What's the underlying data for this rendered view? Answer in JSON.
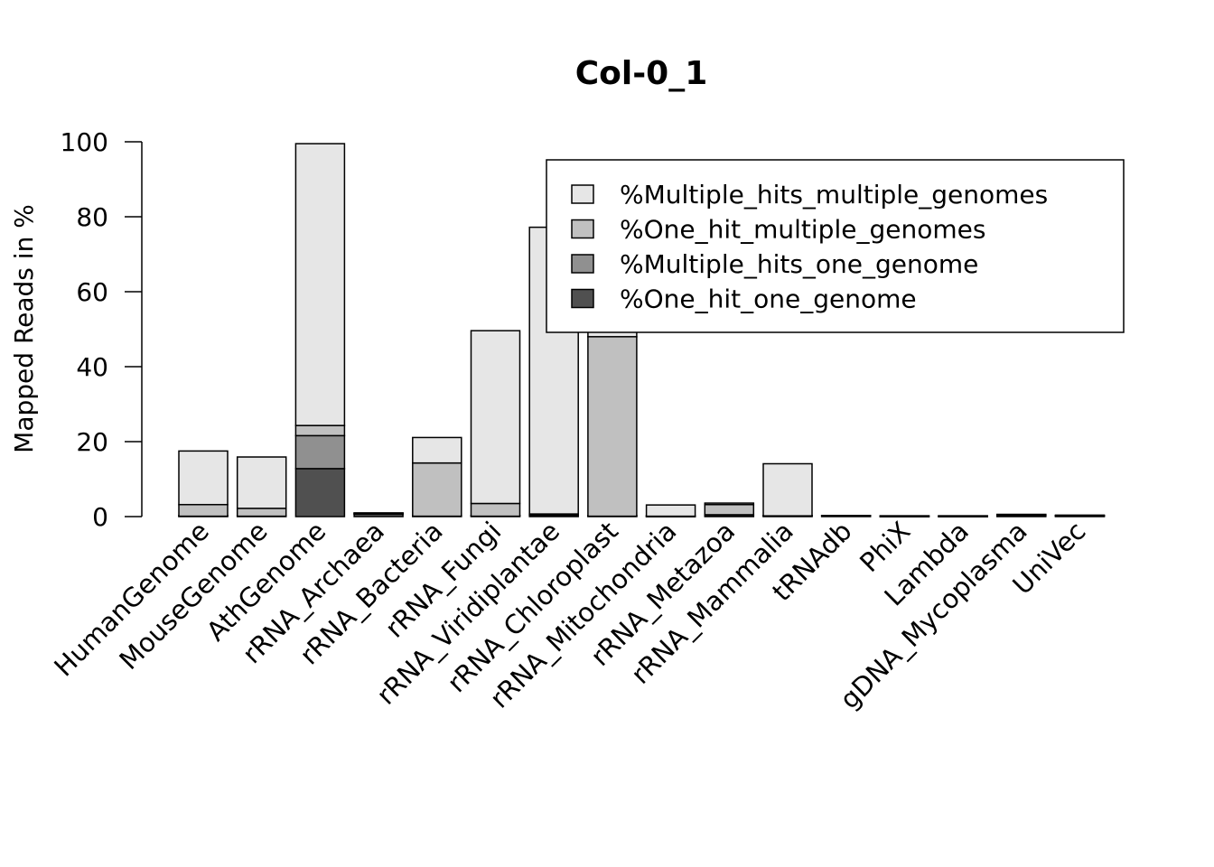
{
  "chart_data": {
    "type": "bar",
    "stacked": true,
    "title": "Col-0_1",
    "xlabel": "",
    "ylabel": "Mapped Reads in %",
    "ylim": [
      0,
      100
    ],
    "yticks": [
      0,
      20,
      40,
      60,
      80,
      100
    ],
    "categories": [
      "HumanGenome",
      "MouseGenome",
      "AthGenome",
      "rRNA_Archaea",
      "rRNA_Bacteria",
      "rRNA_Fungi",
      "rRNA_Viridiplantae",
      "rRNA_Chloroplast",
      "rRNA_Mitochondria",
      "rRNA_Metazoa",
      "rRNA_Mammalia",
      "tRNAdb",
      "PhiX",
      "Lambda",
      "gDNA_Mycoplasma",
      "UniVec"
    ],
    "series": [
      {
        "name": "%One_hit_one_genome",
        "color": "#505050",
        "values": [
          0.1,
          0.1,
          12.8,
          0.7,
          0.1,
          0.1,
          0.3,
          0.1,
          0.0,
          0.1,
          0.1,
          0.1,
          0.0,
          0.0,
          0.2,
          0.1
        ]
      },
      {
        "name": "%Multiple_hits_one_genome",
        "color": "#909090",
        "values": [
          0.0,
          0.0,
          8.8,
          0.0,
          0.0,
          0.0,
          0.2,
          0.0,
          0.0,
          0.4,
          0.0,
          0.0,
          0.0,
          0.0,
          0.1,
          0.0
        ]
      },
      {
        "name": "%One_hit_multiple_genomes",
        "color": "#c0c0c0",
        "values": [
          3.1,
          2.1,
          2.7,
          0.1,
          14.2,
          3.4,
          0.2,
          47.9,
          0.1,
          2.7,
          0.1,
          0.0,
          0.0,
          0.0,
          0.1,
          0.1
        ]
      },
      {
        "name": "%Multiple_hits_multiple_genomes",
        "color": "#e6e6e6",
        "values": [
          14.3,
          13.7,
          75.2,
          0.0,
          6.8,
          46.1,
          76.5,
          2.0,
          3.0,
          0.4,
          13.9,
          0.0,
          0.1,
          0.1,
          0.2,
          0.1
        ]
      }
    ],
    "legend": {
      "position": "top-right",
      "entries": [
        "%Multiple_hits_multiple_genomes",
        "%One_hit_multiple_genomes",
        "%Multiple_hits_one_genome",
        "%One_hit_one_genome"
      ]
    }
  }
}
